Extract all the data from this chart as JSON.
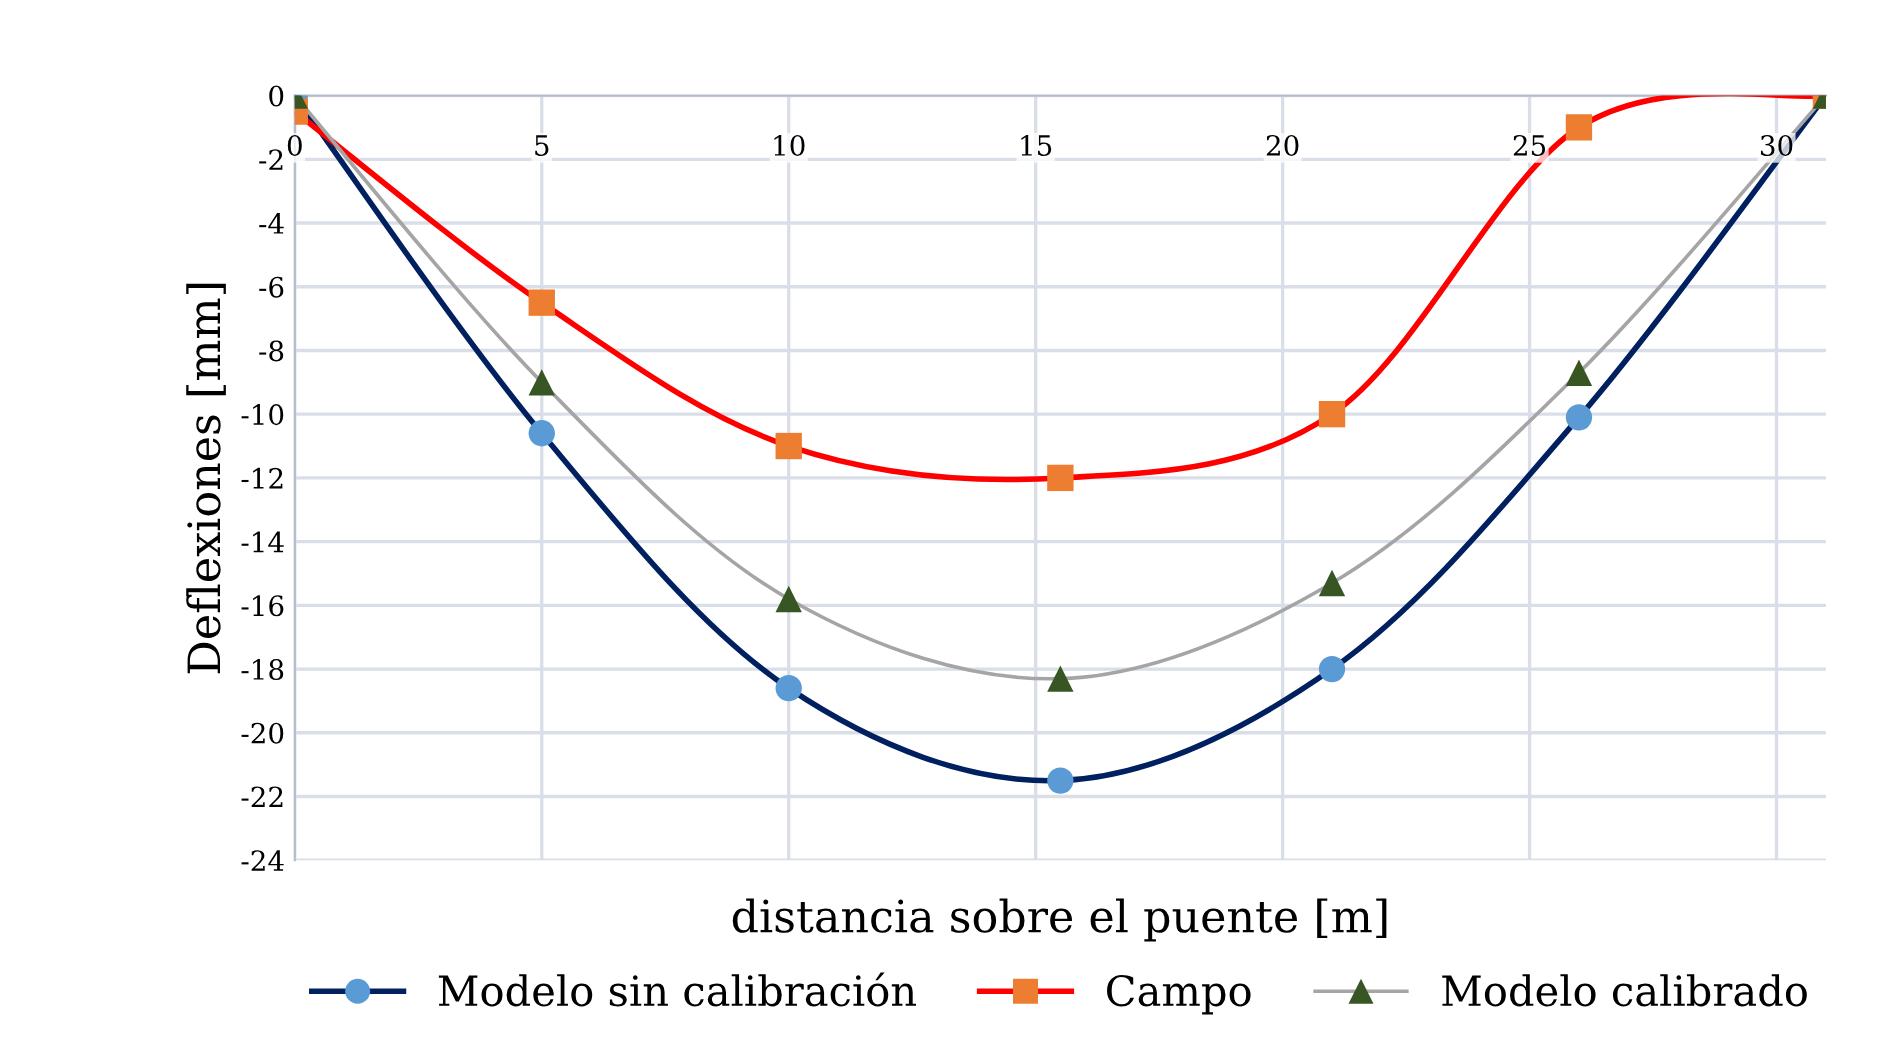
{
  "chart_data": {
    "type": "line",
    "xlabel": "distancia sobre el puente [m]",
    "ylabel": "Deflexiones [mm]",
    "x": [
      0,
      5,
      10,
      15.5,
      21,
      26,
      31
    ],
    "xlim": [
      0,
      31
    ],
    "xticks": [
      0,
      5,
      10,
      15,
      20,
      25,
      30
    ],
    "ylim": [
      -24,
      0
    ],
    "yticks": [
      -24,
      -22,
      -20,
      -18,
      -16,
      -14,
      -12,
      -10,
      -8,
      -6,
      -4,
      -2,
      0
    ],
    "grid": true,
    "legend": "bottom",
    "series": [
      {
        "name": "Modelo sin calibración",
        "color": "#002060",
        "colors": [
          "#5b9bd5",
          "#5b9bd5",
          "#5b9bd5",
          "#5b9bd5",
          "#5b9bd5",
          "#5b9bd5",
          "#5b9bd5"
        ],
        "marker": "circle",
        "values": [
          0,
          -10.6,
          -18.6,
          -21.5,
          -18.0,
          -10.1,
          0
        ]
      },
      {
        "name": "Campo",
        "color": "#ff0000",
        "colors": [
          "#ed7d31",
          "#ed7d31",
          "#ed7d31",
          "#ed7d31",
          "#ed7d31",
          "#ed7d31",
          "#ed7d31"
        ],
        "marker": "square",
        "values": [
          -0.5,
          -6.5,
          -11.0,
          -12.0,
          -10.0,
          -1.0,
          0
        ]
      },
      {
        "name": "Modelo calibrado",
        "color": "#a5a5a5",
        "colors": [
          "#375623",
          "#375623",
          "#375623",
          "#375623",
          "#375623",
          "#375623",
          "#375623"
        ],
        "marker": "triangle",
        "values": [
          0,
          -9.0,
          -15.8,
          -18.3,
          -15.3,
          -8.7,
          0
        ]
      }
    ]
  }
}
